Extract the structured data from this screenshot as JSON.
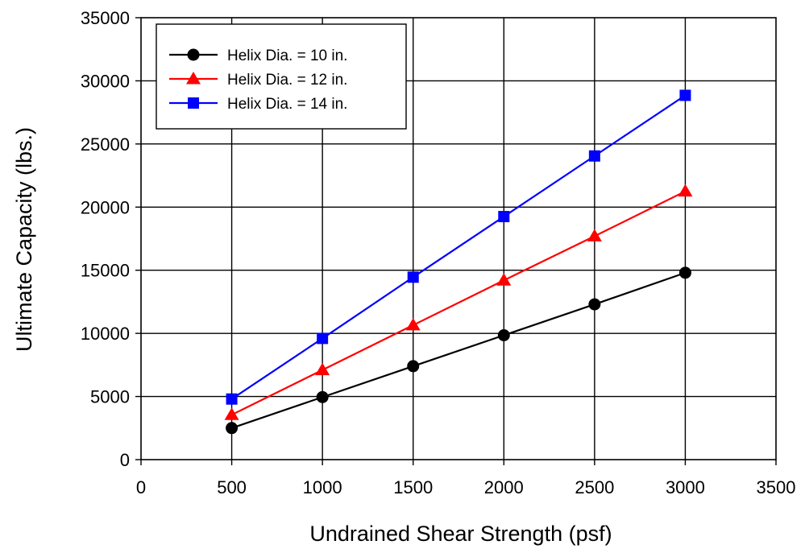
{
  "chart_data": {
    "type": "line",
    "title": "",
    "xlabel": "Undrained Shear Strength (psf)",
    "ylabel": "Ultimate Capacity (lbs.)",
    "xlim": [
      0,
      3500
    ],
    "ylim": [
      0,
      35000
    ],
    "xticks": [
      0,
      500,
      1000,
      1500,
      2000,
      2500,
      3000,
      3500
    ],
    "yticks": [
      0,
      5000,
      10000,
      15000,
      20000,
      25000,
      30000,
      35000
    ],
    "xtick_labels": [
      "0",
      "500",
      "1000",
      "1500",
      "2000",
      "2500",
      "3000",
      "3500"
    ],
    "ytick_labels": [
      "0",
      "5000",
      "10000",
      "15000",
      "20000",
      "25000",
      "30000",
      "35000"
    ],
    "grid": true,
    "legend_position": "top-left",
    "x": [
      500,
      1000,
      1500,
      2000,
      2500,
      3000
    ],
    "series": [
      {
        "name": "Helix Dia. = 10 in.",
        "color": "#000000",
        "marker": "circle",
        "values": [
          2500,
          4950,
          7400,
          9850,
          12300,
          14800
        ]
      },
      {
        "name": "Helix Dia. = 12 in.",
        "color": "#ff0000",
        "marker": "triangle",
        "values": [
          3550,
          7100,
          10650,
          14200,
          17700,
          21250
        ]
      },
      {
        "name": "Helix Dia. = 14 in.",
        "color": "#0000ff",
        "marker": "square",
        "values": [
          4800,
          9600,
          14450,
          19250,
          24050,
          28850
        ]
      }
    ]
  }
}
